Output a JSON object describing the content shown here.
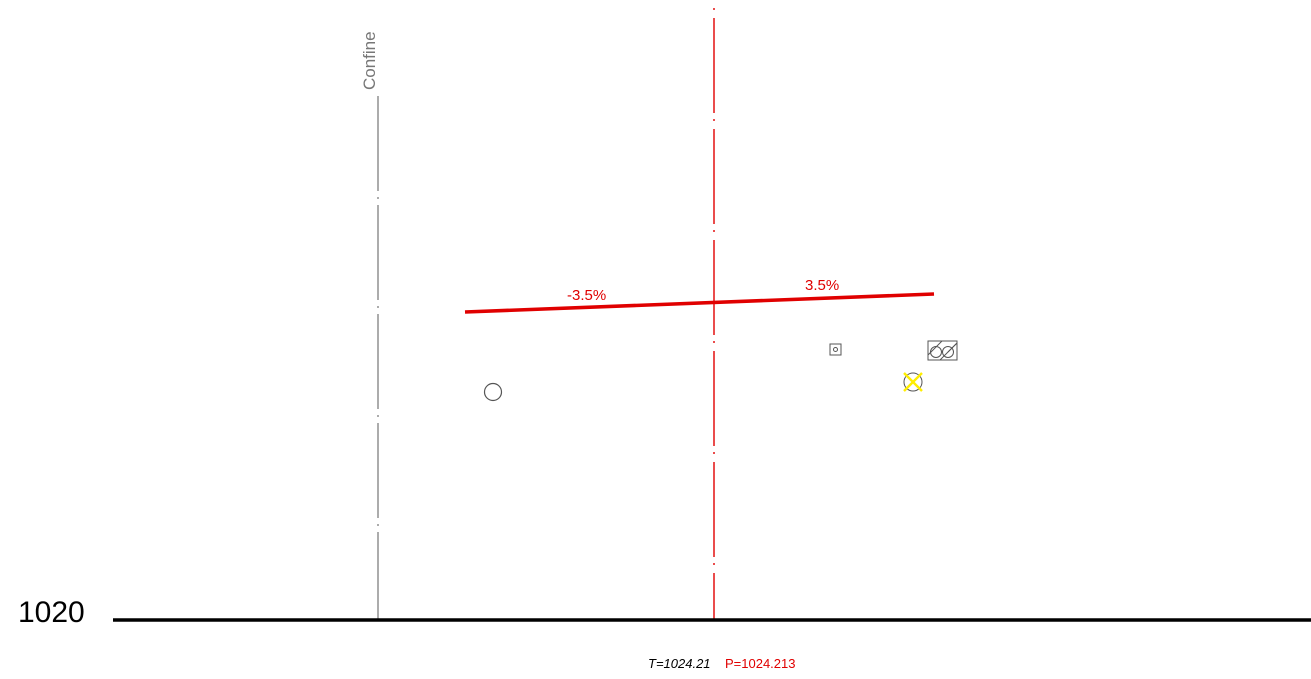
{
  "boundary_label": "Confine",
  "slopes": {
    "left": "-3.5%",
    "right": "3.5%"
  },
  "datum_label": "1020",
  "elevations": {
    "terrain": "T=1024.21",
    "project": "P=1024.213"
  },
  "colors": {
    "axis": "#e00000",
    "slope_line": "#e00000",
    "boundary": "#888888",
    "datum_line": "#000000",
    "marker_highlight": "#ffee00"
  },
  "symbols": [
    "manhole-circle-symbol",
    "small-square-node-symbol",
    "double-pipe-hatched-symbol",
    "crossed-circle-yellow-symbol"
  ]
}
